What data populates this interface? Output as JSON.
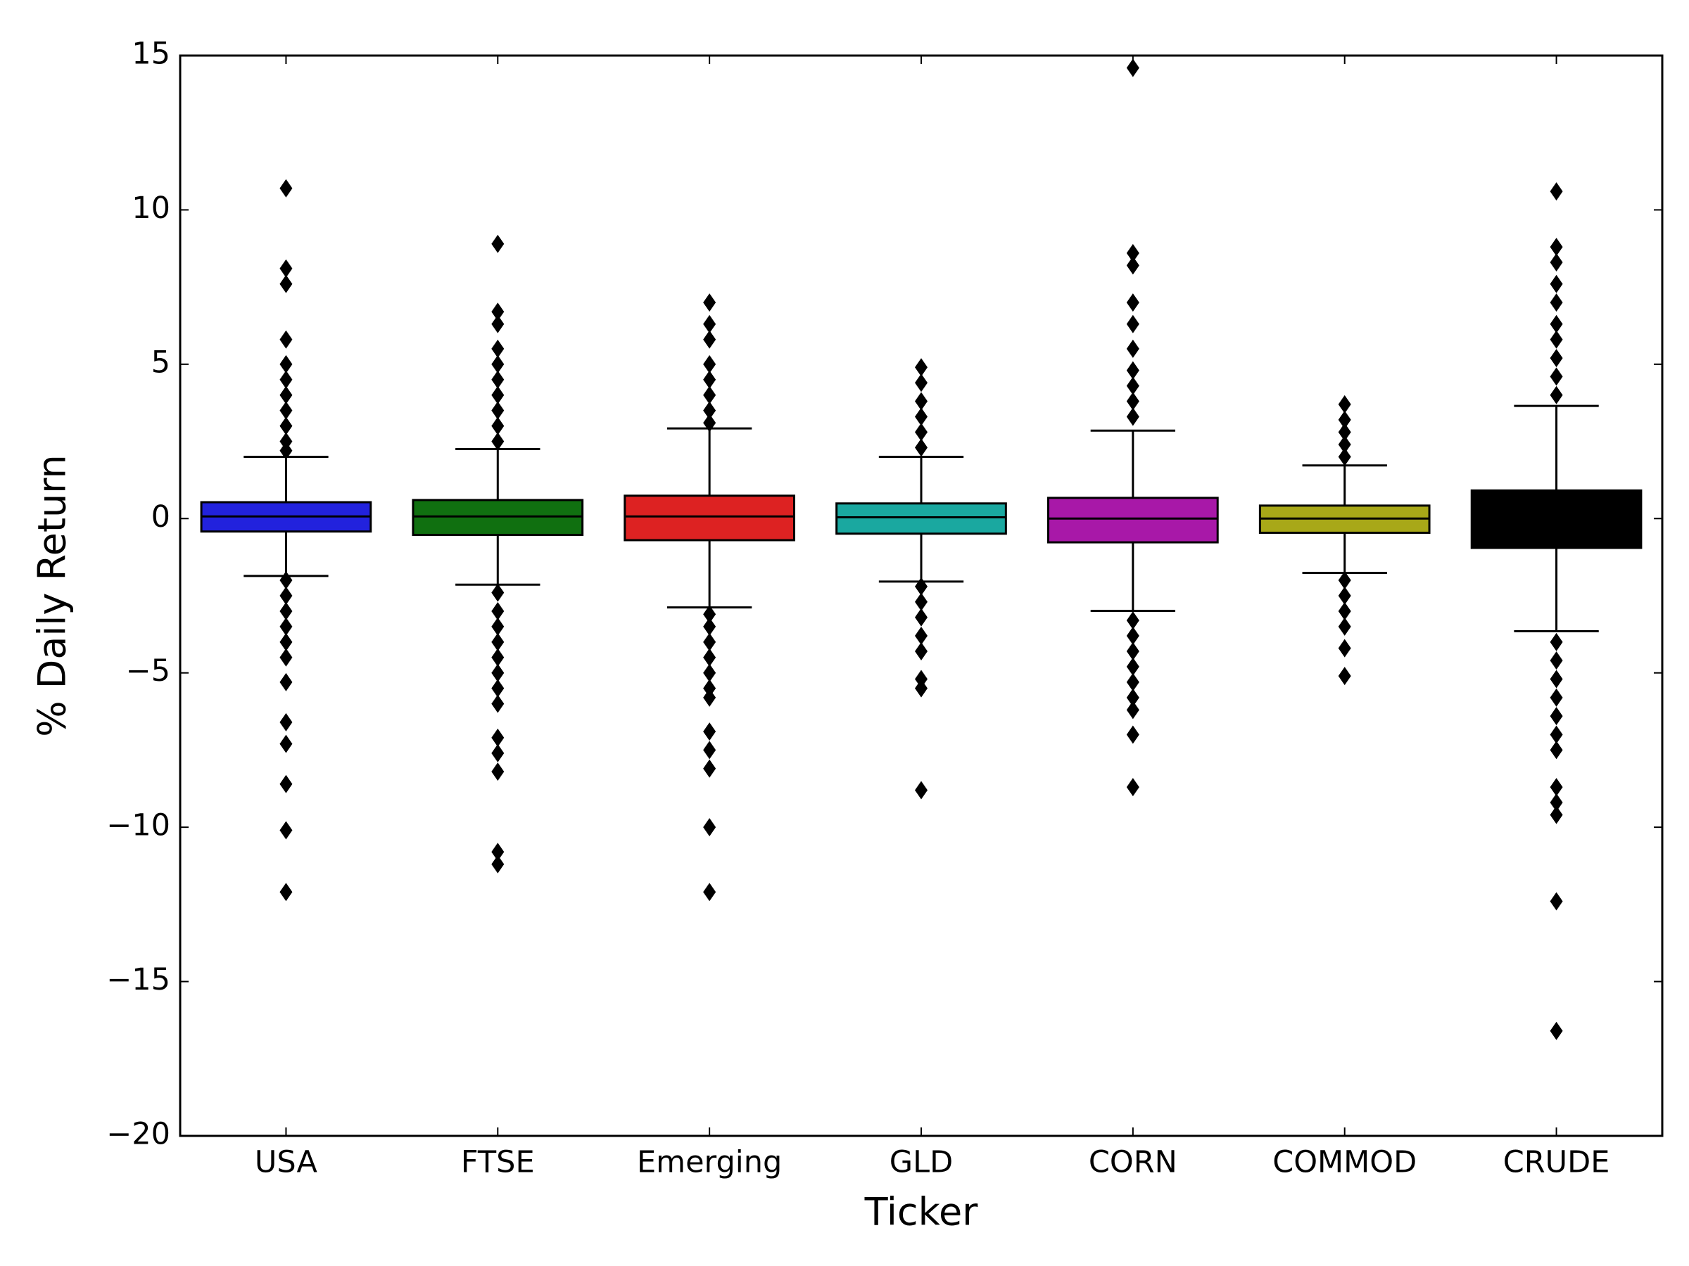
{
  "chart_data": {
    "type": "box",
    "xlabel": "Ticker",
    "ylabel": "% Daily Return",
    "ylim": [
      -20,
      15
    ],
    "yticks": [
      {
        "value": -20,
        "label": "−20"
      },
      {
        "value": -15,
        "label": "−15"
      },
      {
        "value": -10,
        "label": "−10"
      },
      {
        "value": -5,
        "label": "−5"
      },
      0,
      5,
      10,
      15
    ],
    "boxes": [
      {
        "name": "USA",
        "color": "#2222dd",
        "whislo": -1.86,
        "q1": -0.42,
        "med": 0.07,
        "q3": 0.53,
        "whishi": 2.0,
        "fliers": [
          10.7,
          8.1,
          7.6,
          5.8,
          5.0,
          4.5,
          4.0,
          3.5,
          3.0,
          2.5,
          2.2,
          -2.0,
          -2.5,
          -3.0,
          -3.5,
          -4.0,
          -4.5,
          -5.3,
          -6.6,
          -7.3,
          -8.6,
          -10.1,
          -12.1
        ]
      },
      {
        "name": "FTSE",
        "color": "#107010",
        "whislo": -2.14,
        "q1": -0.53,
        "med": 0.07,
        "q3": 0.6,
        "whishi": 2.25,
        "fliers": [
          8.9,
          6.7,
          6.3,
          5.5,
          5.0,
          4.5,
          4.0,
          3.5,
          3.0,
          2.5,
          -2.4,
          -3.0,
          -3.5,
          -4.0,
          -4.5,
          -5.0,
          -5.5,
          -6.0,
          -7.1,
          -7.6,
          -8.2,
          -10.8,
          -11.2
        ]
      },
      {
        "name": "Emerging",
        "color": "#dd2222",
        "whislo": -2.88,
        "q1": -0.7,
        "med": 0.07,
        "q3": 0.74,
        "whishi": 2.92,
        "fliers": [
          7.0,
          6.3,
          5.8,
          5.0,
          4.5,
          4.0,
          3.5,
          3.1,
          -3.1,
          -3.5,
          -4.0,
          -4.5,
          -5.0,
          -5.5,
          -5.8,
          -6.9,
          -7.5,
          -8.1,
          -10.0,
          -12.1
        ]
      },
      {
        "name": "GLD",
        "color": "#1aa8a0",
        "whislo": -2.04,
        "q1": -0.49,
        "med": 0.04,
        "q3": 0.49,
        "whishi": 2.0,
        "fliers": [
          4.9,
          4.4,
          3.8,
          3.3,
          2.8,
          2.3,
          -2.2,
          -2.7,
          -3.2,
          -3.8,
          -4.3,
          -5.2,
          -5.5,
          -8.8
        ]
      },
      {
        "name": "CORN",
        "color": "#a818a8",
        "whislo": -2.99,
        "q1": -0.77,
        "med": 0.0,
        "q3": 0.67,
        "whishi": 2.85,
        "fliers": [
          14.6,
          8.6,
          8.2,
          7.0,
          6.3,
          5.5,
          4.8,
          4.3,
          3.8,
          3.3,
          -3.3,
          -3.8,
          -4.3,
          -4.8,
          -5.3,
          -5.8,
          -6.2,
          -7.0,
          -8.7
        ]
      },
      {
        "name": "COMMOD",
        "color": "#a8a818",
        "whislo": -1.76,
        "q1": -0.46,
        "med": 0.0,
        "q3": 0.42,
        "whishi": 1.72,
        "fliers": [
          3.7,
          3.2,
          2.8,
          2.4,
          2.0,
          -2.0,
          -2.5,
          -3.0,
          -3.5,
          -4.2,
          -5.1
        ]
      },
      {
        "name": "CRUDE",
        "color": "#000000",
        "whislo": -3.65,
        "q1": -0.95,
        "med": 0.0,
        "q3": 0.91,
        "whishi": 3.65,
        "fliers": [
          10.6,
          8.8,
          8.3,
          7.6,
          7.0,
          6.3,
          5.8,
          5.2,
          4.6,
          4.0,
          -4.0,
          -4.6,
          -5.2,
          -5.8,
          -6.4,
          -7.0,
          -7.5,
          -8.7,
          -9.2,
          -9.6,
          -12.4,
          -16.6
        ]
      }
    ]
  }
}
